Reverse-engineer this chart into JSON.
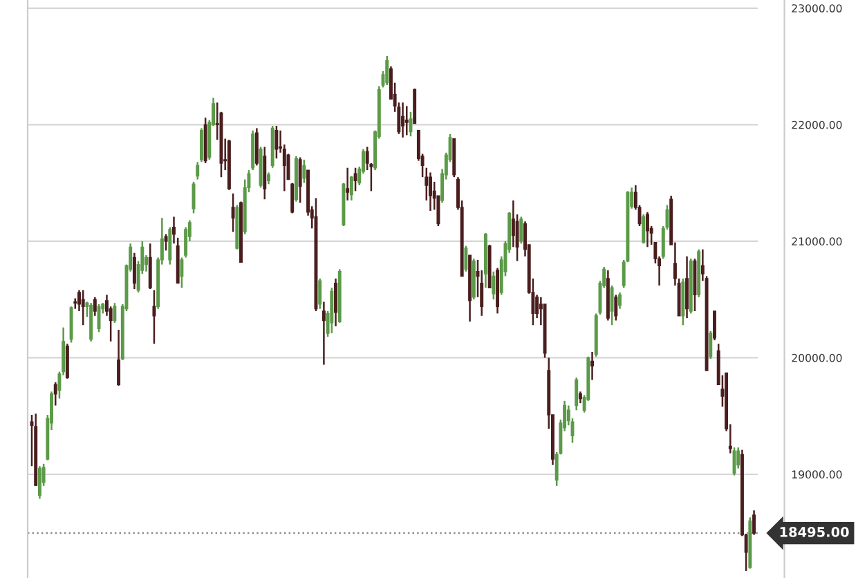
{
  "chart_data": {
    "type": "candlestick",
    "categories": [
      null,
      null,
      null,
      null,
      null,
      null,
      null,
      null,
      null,
      null,
      null,
      null,
      null,
      null,
      null,
      null,
      null,
      null,
      null,
      null,
      null,
      null,
      null,
      null,
      null,
      null,
      null,
      null,
      null,
      null,
      null,
      null,
      null,
      null,
      null,
      null,
      null,
      null,
      null,
      null,
      null,
      null,
      null,
      null,
      null,
      null,
      null,
      null,
      null,
      null,
      null,
      null,
      null,
      null,
      null,
      null,
      null,
      null,
      null,
      null,
      null,
      null,
      null,
      null,
      null,
      null,
      null,
      null,
      null,
      null,
      null,
      null,
      null,
      null,
      null,
      null,
      null,
      null,
      null,
      null,
      null,
      null,
      null,
      null,
      null,
      null,
      null,
      null,
      null,
      null,
      null,
      null,
      null,
      null,
      null,
      null,
      null,
      null,
      null,
      null,
      null,
      null,
      null,
      null,
      null,
      null,
      null,
      null,
      null,
      null,
      null,
      null,
      null,
      null,
      null,
      null,
      null,
      null,
      null,
      null,
      null,
      null,
      null,
      null,
      null,
      null,
      null,
      null,
      null,
      null,
      null,
      null,
      null,
      null,
      null,
      null,
      null,
      null,
      null,
      null,
      null,
      null,
      null,
      null,
      null,
      null,
      null,
      null,
      null,
      null,
      null,
      null,
      null,
      null,
      null,
      null,
      null,
      null,
      null,
      null,
      null,
      null,
      null,
      null,
      null,
      null,
      null,
      null,
      null,
      null,
      null,
      null,
      null,
      null,
      null,
      null,
      null,
      null,
      null,
      null,
      null,
      null,
      null,
      null
    ],
    "ohlc": [
      [
        19450,
        19510,
        19070,
        19420
      ],
      [
        19410,
        19520,
        18900,
        18905
      ],
      [
        18820,
        19070,
        18790,
        19050
      ],
      [
        18930,
        19090,
        18900,
        19060
      ],
      [
        19130,
        19510,
        19120,
        19480
      ],
      [
        19440,
        19710,
        19380,
        19690
      ],
      [
        19770,
        19790,
        19590,
        19690
      ],
      [
        19720,
        19880,
        19650,
        19860
      ],
      [
        19880,
        20260,
        19850,
        20140
      ],
      [
        20100,
        20120,
        19820,
        19830
      ],
      [
        20160,
        20440,
        20130,
        20430
      ],
      [
        20480,
        20510,
        20420,
        20470
      ],
      [
        20560,
        20580,
        20400,
        20460
      ],
      [
        20500,
        20580,
        20280,
        20440
      ],
      [
        20440,
        20480,
        20350,
        20470
      ],
      [
        20160,
        20470,
        20140,
        20450
      ],
      [
        20500,
        20520,
        20360,
        20400
      ],
      [
        20250,
        20460,
        20220,
        20440
      ],
      [
        20420,
        20470,
        20380,
        20460
      ],
      [
        20490,
        20540,
        20360,
        20400
      ],
      [
        20420,
        20440,
        20140,
        20320
      ],
      [
        20320,
        20470,
        20300,
        20440
      ],
      [
        19980,
        20240,
        19760,
        19770
      ],
      [
        19990,
        20460,
        19980,
        20440
      ],
      [
        20420,
        20800,
        20400,
        20790
      ],
      [
        20760,
        20980,
        20740,
        20950
      ],
      [
        20860,
        20900,
        20590,
        20640
      ],
      [
        20580,
        20830,
        20560,
        20800
      ],
      [
        20750,
        21000,
        20720,
        20950
      ],
      [
        20800,
        20880,
        20740,
        20860
      ],
      [
        20860,
        20980,
        20590,
        20600
      ],
      [
        20440,
        20580,
        20120,
        20360
      ],
      [
        20440,
        20860,
        20420,
        20840
      ],
      [
        20840,
        21200,
        20800,
        21020
      ],
      [
        21040,
        21060,
        20920,
        21000
      ],
      [
        20840,
        21120,
        20800,
        21100
      ],
      [
        21120,
        21210,
        20980,
        21060
      ],
      [
        20960,
        21030,
        20640,
        20640
      ],
      [
        20700,
        20860,
        20600,
        20840
      ],
      [
        20880,
        21120,
        20860,
        21100
      ],
      [
        21040,
        21180,
        21000,
        21160
      ],
      [
        21280,
        21510,
        21240,
        21490
      ],
      [
        21560,
        21680,
        21530,
        21650
      ],
      [
        21700,
        21970,
        21680,
        21950
      ],
      [
        22000,
        22060,
        21670,
        21690
      ],
      [
        21720,
        22040,
        21700,
        22020
      ],
      [
        22000,
        22230,
        21990,
        22180
      ],
      [
        22010,
        22190,
        21870,
        22000
      ],
      [
        22100,
        22110,
        21550,
        21670
      ],
      [
        21700,
        21880,
        21610,
        21690
      ],
      [
        21860,
        21870,
        21440,
        21450
      ],
      [
        21290,
        21410,
        21080,
        21200
      ],
      [
        20940,
        21310,
        20930,
        21290
      ],
      [
        21330,
        21340,
        20820,
        20820
      ],
      [
        21080,
        21530,
        21060,
        21460
      ],
      [
        21460,
        21610,
        21420,
        21580
      ],
      [
        21630,
        21950,
        21610,
        21920
      ],
      [
        21930,
        21970,
        21650,
        21670
      ],
      [
        21480,
        21810,
        21460,
        21790
      ],
      [
        21730,
        21810,
        21360,
        21450
      ],
      [
        21520,
        21590,
        21490,
        21570
      ],
      [
        21650,
        21990,
        21630,
        21970
      ],
      [
        21950,
        21990,
        21710,
        21790
      ],
      [
        21810,
        21950,
        21760,
        21800
      ],
      [
        21790,
        21830,
        21430,
        21650
      ],
      [
        21740,
        21750,
        21530,
        21530
      ],
      [
        21490,
        21500,
        21240,
        21250
      ],
      [
        21360,
        21730,
        21340,
        21710
      ],
      [
        21700,
        21720,
        21330,
        21470
      ],
      [
        21540,
        21700,
        21500,
        21650
      ],
      [
        21610,
        21610,
        21220,
        21250
      ],
      [
        21270,
        21300,
        21110,
        21200
      ],
      [
        21210,
        21370,
        20400,
        20420
      ],
      [
        20460,
        20680,
        20420,
        20660
      ],
      [
        20400,
        20480,
        19940,
        20320
      ],
      [
        20210,
        20400,
        20180,
        20380
      ],
      [
        20300,
        20600,
        20210,
        20570
      ],
      [
        20640,
        20680,
        20270,
        20390
      ],
      [
        20310,
        20760,
        20300,
        20740
      ],
      [
        21140,
        21500,
        21130,
        21490
      ],
      [
        21450,
        21630,
        21350,
        21420
      ],
      [
        21400,
        21560,
        21350,
        21550
      ],
      [
        21580,
        21630,
        21430,
        21520
      ],
      [
        21500,
        21640,
        21480,
        21620
      ],
      [
        21600,
        21790,
        21580,
        21770
      ],
      [
        21770,
        21810,
        21610,
        21670
      ],
      [
        21660,
        21670,
        21430,
        21640
      ],
      [
        21630,
        21950,
        21610,
        21940
      ],
      [
        21900,
        22330,
        21880,
        22300
      ],
      [
        22340,
        22460,
        22320,
        22430
      ],
      [
        22360,
        22590,
        22340,
        22550
      ],
      [
        22480,
        22500,
        22220,
        22220
      ],
      [
        22260,
        22360,
        22110,
        22160
      ],
      [
        22150,
        22190,
        21920,
        21940
      ],
      [
        22070,
        22190,
        21890,
        21990
      ],
      [
        22040,
        22160,
        21910,
        22020
      ],
      [
        21940,
        22110,
        21900,
        22050
      ],
      [
        22300,
        22310,
        22010,
        22010
      ],
      [
        21950,
        21950,
        21690,
        21710
      ],
      [
        21730,
        21750,
        21550,
        21650
      ],
      [
        21550,
        21630,
        21350,
        21480
      ],
      [
        21550,
        21590,
        21260,
        21390
      ],
      [
        21430,
        21510,
        21270,
        21370
      ],
      [
        21390,
        21390,
        21130,
        21150
      ],
      [
        21350,
        21620,
        21330,
        21580
      ],
      [
        21570,
        21760,
        21530,
        21740
      ],
      [
        21700,
        21920,
        21680,
        21890
      ],
      [
        21880,
        21880,
        21550,
        21570
      ],
      [
        21530,
        21550,
        21270,
        21290
      ],
      [
        21290,
        21350,
        20700,
        20700
      ],
      [
        20760,
        20960,
        20740,
        20940
      ],
      [
        20880,
        20880,
        20310,
        20490
      ],
      [
        20520,
        20850,
        20500,
        20830
      ],
      [
        20740,
        20840,
        20520,
        20700
      ],
      [
        20640,
        20750,
        20360,
        20440
      ],
      [
        20720,
        21070,
        20600,
        21060
      ],
      [
        20960,
        20970,
        20600,
        20600
      ],
      [
        20550,
        20740,
        20500,
        20700
      ],
      [
        20750,
        20770,
        20380,
        20440
      ],
      [
        20560,
        20870,
        20540,
        20840
      ],
      [
        20740,
        21000,
        20700,
        20980
      ],
      [
        20930,
        21250,
        20900,
        21240
      ],
      [
        21190,
        21350,
        20950,
        21050
      ],
      [
        21170,
        21230,
        20830,
        20950
      ],
      [
        21000,
        21210,
        20980,
        21190
      ],
      [
        21150,
        21170,
        20870,
        20930
      ],
      [
        20970,
        20970,
        20550,
        20560
      ],
      [
        20560,
        20680,
        20280,
        20380
      ],
      [
        20520,
        20540,
        20340,
        20380
      ],
      [
        20460,
        20520,
        20280,
        20420
      ],
      [
        20460,
        20460,
        20000,
        20040
      ],
      [
        19890,
        20000,
        19390,
        19510
      ],
      [
        19510,
        19510,
        19080,
        19130
      ],
      [
        18950,
        19190,
        18900,
        19170
      ],
      [
        19180,
        19470,
        19170,
        19440
      ],
      [
        19400,
        19630,
        19370,
        19590
      ],
      [
        19460,
        19590,
        19420,
        19550
      ],
      [
        19330,
        19480,
        19270,
        19450
      ],
      [
        19590,
        19830,
        19550,
        19810
      ],
      [
        19690,
        19710,
        19610,
        19650
      ],
      [
        19550,
        19680,
        19530,
        19660
      ],
      [
        19640,
        20010,
        19630,
        20000
      ],
      [
        19970,
        20050,
        19810,
        19930
      ],
      [
        20030,
        20380,
        20010,
        20360
      ],
      [
        20390,
        20660,
        20370,
        20640
      ],
      [
        20620,
        20780,
        20600,
        20760
      ],
      [
        20680,
        20750,
        20320,
        20340
      ],
      [
        20400,
        20620,
        20280,
        20600
      ],
      [
        20520,
        20540,
        20320,
        20360
      ],
      [
        20450,
        20560,
        20420,
        20540
      ],
      [
        20620,
        20840,
        20600,
        20820
      ],
      [
        20830,
        21430,
        20820,
        21420
      ],
      [
        21300,
        21460,
        21280,
        21420
      ],
      [
        21420,
        21480,
        21270,
        21290
      ],
      [
        21290,
        21310,
        21130,
        21150
      ],
      [
        20990,
        21230,
        20980,
        21210
      ],
      [
        21230,
        21250,
        20950,
        21090
      ],
      [
        21110,
        21130,
        20970,
        21070
      ],
      [
        20990,
        20990,
        20810,
        20850
      ],
      [
        20850,
        20870,
        20620,
        20790
      ],
      [
        20870,
        21130,
        20850,
        21110
      ],
      [
        21120,
        21310,
        21100,
        21270
      ],
      [
        21360,
        21390,
        20970,
        20970
      ],
      [
        20810,
        20990,
        20620,
        20680
      ],
      [
        20640,
        20680,
        20360,
        20360
      ],
      [
        20360,
        20680,
        20280,
        20650
      ],
      [
        20680,
        20870,
        20340,
        20420
      ],
      [
        20400,
        20850,
        20380,
        20830
      ],
      [
        20830,
        20850,
        20400,
        20540
      ],
      [
        20540,
        20930,
        20520,
        20910
      ],
      [
        20790,
        20930,
        20660,
        20720
      ],
      [
        20680,
        20700,
        19890,
        19890
      ],
      [
        20010,
        20230,
        19990,
        20210
      ],
      [
        20400,
        20400,
        20150,
        20170
      ],
      [
        20060,
        20120,
        19770,
        19770
      ],
      [
        19730,
        19850,
        19580,
        19670
      ],
      [
        19870,
        19870,
        19370,
        19390
      ],
      [
        19240,
        19430,
        19180,
        19220
      ],
      [
        19010,
        19230,
        18990,
        19200
      ],
      [
        19080,
        19230,
        19050,
        19200
      ],
      [
        19170,
        19210,
        18470,
        18480
      ],
      [
        18480,
        18490,
        18170,
        18330
      ],
      [
        18200,
        18630,
        18190,
        18600
      ],
      [
        18650,
        18690,
        18480,
        18495
      ]
    ],
    "colors": [
      "#4a1e1e",
      "#4a1e1e",
      "#5b9a48",
      "#5b9a48",
      "#5b9a48",
      "#5b9a48",
      "#4a1e1e",
      "#5b9a48",
      "#5b9a48",
      "#4a1e1e",
      "#5b9a48",
      "#4a1e1e",
      "#4a1e1e",
      "#4a1e1e",
      "#5b9a48",
      "#5b9a48",
      "#4a1e1e",
      "#5b9a48",
      "#5b9a48",
      "#4a1e1e",
      "#4a1e1e",
      "#5b9a48",
      "#4a1e1e",
      "#5b9a48",
      "#5b9a48",
      "#5b9a48",
      "#4a1e1e",
      "#5b9a48",
      "#5b9a48",
      "#5b9a48",
      "#4a1e1e",
      "#4a1e1e",
      "#5b9a48",
      "#5b9a48",
      "#4a1e1e",
      "#5b9a48",
      "#4a1e1e",
      "#4a1e1e",
      "#5b9a48",
      "#5b9a48",
      "#5b9a48",
      "#5b9a48",
      "#5b9a48",
      "#5b9a48",
      "#4a1e1e",
      "#5b9a48",
      "#5b9a48",
      "#4a1e1e",
      "#4a1e1e",
      "#4a1e1e",
      "#4a1e1e",
      "#4a1e1e",
      "#5b9a48",
      "#4a1e1e",
      "#5b9a48",
      "#5b9a48",
      "#5b9a48",
      "#4a1e1e",
      "#5b9a48",
      "#4a1e1e",
      "#5b9a48",
      "#5b9a48",
      "#4a1e1e",
      "#4a1e1e",
      "#4a1e1e",
      "#4a1e1e",
      "#4a1e1e",
      "#5b9a48",
      "#4a1e1e",
      "#5b9a48",
      "#4a1e1e",
      "#4a1e1e",
      "#4a1e1e",
      "#5b9a48",
      "#4a1e1e",
      "#5b9a48",
      "#5b9a48",
      "#4a1e1e",
      "#5b9a48",
      "#5b9a48",
      "#4a1e1e",
      "#5b9a48",
      "#4a1e1e",
      "#5b9a48",
      "#5b9a48",
      "#4a1e1e",
      "#4a1e1e",
      "#5b9a48",
      "#5b9a48",
      "#5b9a48",
      "#5b9a48",
      "#4a1e1e",
      "#4a1e1e",
      "#4a1e1e",
      "#4a1e1e",
      "#4a1e1e",
      "#5b9a48",
      "#4a1e1e",
      "#4a1e1e",
      "#4a1e1e",
      "#4a1e1e",
      "#4a1e1e",
      "#4a1e1e",
      "#4a1e1e",
      "#5b9a48",
      "#5b9a48",
      "#5b9a48",
      "#4a1e1e",
      "#4a1e1e",
      "#4a1e1e",
      "#5b9a48",
      "#4a1e1e",
      "#5b9a48",
      "#4a1e1e",
      "#4a1e1e",
      "#5b9a48",
      "#4a1e1e",
      "#5b9a48",
      "#4a1e1e",
      "#5b9a48",
      "#5b9a48",
      "#5b9a48",
      "#4a1e1e",
      "#4a1e1e",
      "#5b9a48",
      "#4a1e1e",
      "#4a1e1e",
      "#4a1e1e",
      "#4a1e1e",
      "#4a1e1e",
      "#4a1e1e",
      "#4a1e1e",
      "#4a1e1e",
      "#5b9a48",
      "#5b9a48",
      "#5b9a48",
      "#5b9a48",
      "#5b9a48",
      "#5b9a48",
      "#4a1e1e",
      "#5b9a48",
      "#5b9a48",
      "#4a1e1e",
      "#5b9a48",
      "#5b9a48",
      "#5b9a48",
      "#4a1e1e",
      "#5b9a48",
      "#4a1e1e",
      "#5b9a48",
      "#5b9a48",
      "#5b9a48",
      "#5b9a48",
      "#4a1e1e",
      "#4a1e1e",
      "#5b9a48",
      "#4a1e1e",
      "#4a1e1e",
      "#4a1e1e",
      "#4a1e1e",
      "#5b9a48",
      "#5b9a48",
      "#4a1e1e",
      "#4a1e1e",
      "#4a1e1e",
      "#5b9a48",
      "#4a1e1e",
      "#5b9a48",
      "#4a1e1e",
      "#5b9a48",
      "#4a1e1e",
      "#4a1e1e",
      "#5b9a48",
      "#4a1e1e",
      "#4a1e1e",
      "#4a1e1e",
      "#4a1e1e",
      "#4a1e1e",
      "#5b9a48",
      "#5b9a48",
      "#4a1e1e",
      "#4a1e1e",
      "#5b9a48",
      "#4a1e1e"
    ],
    "ylim": [
      18110,
      23070
    ],
    "yticks": [
      {
        "value": 19000,
        "label": "19000.00"
      },
      {
        "value": 20000,
        "label": "20000.00"
      },
      {
        "value": 21000,
        "label": "21000.00"
      },
      {
        "value": 22000,
        "label": "22000.00"
      },
      {
        "value": 23000,
        "label": "23000.00"
      }
    ],
    "grid": "y",
    "tick_labels": "y",
    "ref_lines": [
      {
        "axis": "y",
        "value": 18495,
        "label": "18495.00",
        "color": "#8c8c8c",
        "line_style": "dotted"
      }
    ]
  }
}
